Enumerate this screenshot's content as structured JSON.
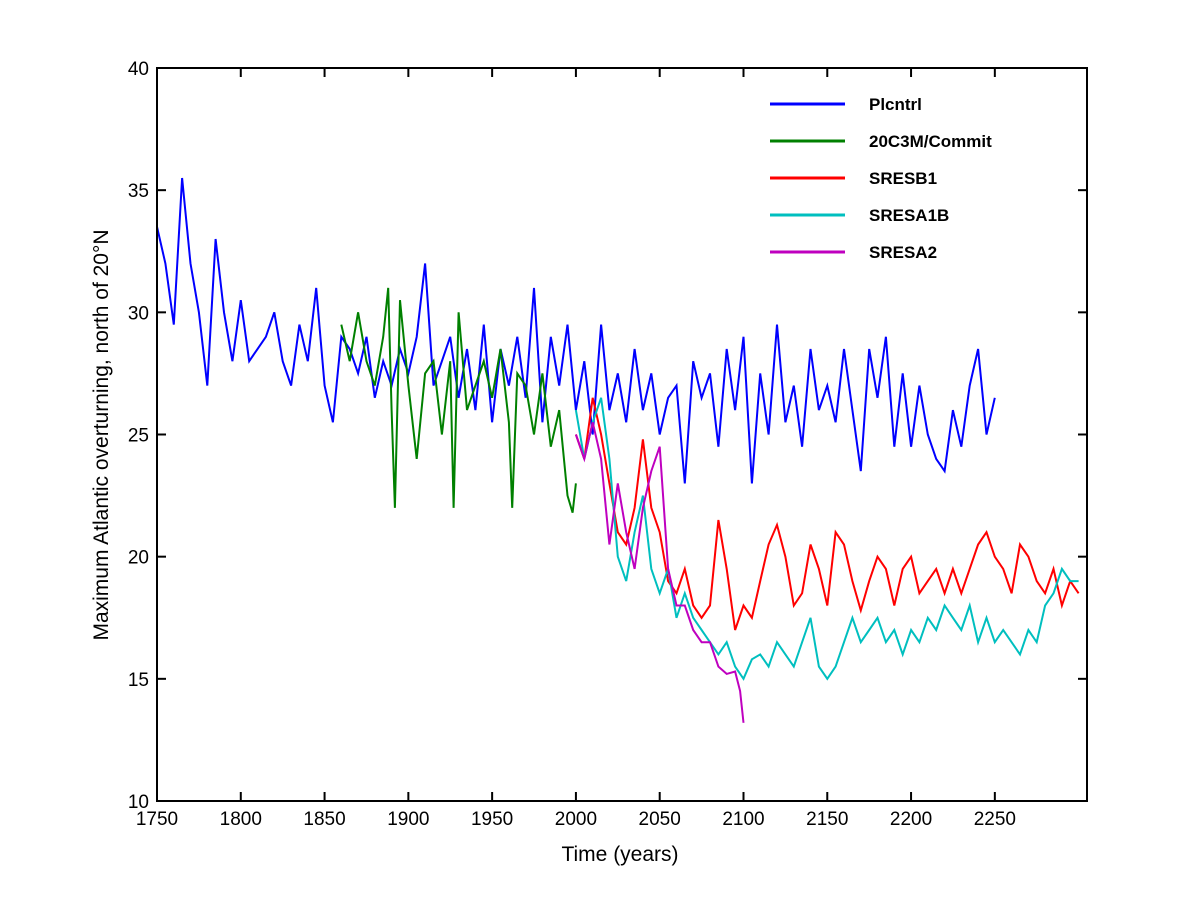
{
  "chart_data": {
    "type": "line",
    "title": "",
    "xlabel": "Time (years)",
    "ylabel": "Maximum Atlantic overturning, north of 20°N",
    "xlim": [
      1750,
      2305
    ],
    "ylim": [
      10,
      40
    ],
    "xticks": [
      1750,
      1800,
      1850,
      1900,
      1950,
      2000,
      2050,
      2100,
      2150,
      2200,
      2250
    ],
    "yticks": [
      10,
      15,
      20,
      25,
      30,
      35,
      40
    ],
    "grid": false,
    "legend_position": "top-right",
    "series": [
      {
        "name": "Plcntrl",
        "color": "#0000ff",
        "x": [
          1750,
          1755,
          1760,
          1765,
          1770,
          1775,
          1780,
          1785,
          1790,
          1795,
          1800,
          1805,
          1810,
          1815,
          1820,
          1825,
          1830,
          1835,
          1840,
          1845,
          1850,
          1855,
          1860,
          1865,
          1870,
          1875,
          1880,
          1885,
          1890,
          1895,
          1900,
          1905,
          1910,
          1915,
          1920,
          1925,
          1930,
          1935,
          1940,
          1945,
          1950,
          1955,
          1960,
          1965,
          1970,
          1975,
          1980,
          1985,
          1990,
          1995,
          2000,
          2005,
          2010,
          2015,
          2020,
          2025,
          2030,
          2035,
          2040,
          2045,
          2050,
          2055,
          2060,
          2065,
          2070,
          2075,
          2080,
          2085,
          2090,
          2095,
          2100,
          2105,
          2110,
          2115,
          2120,
          2125,
          2130,
          2135,
          2140,
          2145,
          2150,
          2155,
          2160,
          2165,
          2170,
          2175,
          2180,
          2185,
          2190,
          2195,
          2200,
          2205,
          2210,
          2215,
          2220,
          2225,
          2230,
          2235,
          2240,
          2245,
          2250
        ],
        "y": [
          33.5,
          32,
          29.5,
          35.5,
          32,
          30,
          27,
          33,
          30,
          28,
          30.5,
          28,
          28.5,
          29,
          30,
          28,
          27,
          29.5,
          28,
          31,
          27,
          25.5,
          29,
          28.5,
          27.5,
          29,
          26.5,
          28,
          27,
          28.5,
          27.5,
          29,
          32,
          27,
          28,
          29,
          26.5,
          28.5,
          26,
          29.5,
          25.5,
          28.5,
          27,
          29,
          26.5,
          31,
          25.5,
          29,
          27,
          29.5,
          26,
          28,
          25,
          29.5,
          26,
          27.5,
          25.5,
          28.5,
          26,
          27.5,
          25,
          26.5,
          27,
          23,
          28,
          26.5,
          27.5,
          24.5,
          28.5,
          26,
          29,
          23,
          27.5,
          25,
          29.5,
          25.5,
          27,
          24.5,
          28.5,
          26,
          27,
          25.5,
          28.5,
          26,
          23.5,
          28.5,
          26.5,
          29,
          24.5,
          27.5,
          24.5,
          27,
          25,
          24,
          23.5,
          26,
          24.5,
          27,
          28.5,
          25,
          26.5
        ]
      },
      {
        "name": "20C3M/Commit",
        "color": "#008000",
        "x": [
          1860,
          1865,
          1870,
          1875,
          1880,
          1885,
          1888,
          1890,
          1892,
          1895,
          1900,
          1905,
          1910,
          1915,
          1920,
          1925,
          1927,
          1930,
          1935,
          1940,
          1945,
          1950,
          1955,
          1960,
          1962,
          1965,
          1970,
          1975,
          1980,
          1985,
          1990,
          1995,
          1998,
          2000
        ],
        "y": [
          29.5,
          28,
          30,
          28,
          27,
          29,
          31,
          26,
          22,
          30.5,
          27,
          24,
          27.5,
          28,
          25,
          28,
          22,
          30,
          26,
          27,
          28,
          26.5,
          28.5,
          25.5,
          22,
          27.5,
          27,
          25,
          27.5,
          24.5,
          26,
          22.5,
          21.8,
          23
        ]
      },
      {
        "name": "SRESB1",
        "color": "#ff0000",
        "x": [
          2000,
          2005,
          2010,
          2015,
          2020,
          2025,
          2030,
          2035,
          2040,
          2045,
          2050,
          2055,
          2060,
          2065,
          2070,
          2075,
          2080,
          2085,
          2090,
          2095,
          2100,
          2105,
          2110,
          2115,
          2120,
          2125,
          2130,
          2135,
          2140,
          2145,
          2150,
          2155,
          2160,
          2165,
          2170,
          2175,
          2180,
          2185,
          2190,
          2195,
          2200,
          2205,
          2210,
          2215,
          2220,
          2225,
          2230,
          2235,
          2240,
          2245,
          2250,
          2255,
          2260,
          2265,
          2270,
          2275,
          2280,
          2285,
          2290,
          2295,
          2300
        ],
        "y": [
          25,
          24,
          26.5,
          25,
          23,
          21,
          20.5,
          22,
          24.8,
          22,
          21,
          19,
          18.5,
          19.5,
          18,
          17.5,
          18,
          21.5,
          19.5,
          17,
          18,
          17.5,
          19,
          20.5,
          21.3,
          20,
          18,
          18.5,
          20.5,
          19.5,
          18,
          21,
          20.5,
          19,
          17.8,
          19,
          20,
          19.5,
          18,
          19.5,
          20,
          18.5,
          19,
          19.5,
          18.5,
          19.5,
          18.5,
          19.5,
          20.5,
          21,
          20,
          19.5,
          18.5,
          20.5,
          20,
          19,
          18.5,
          19.5,
          18,
          19,
          18.5
        ]
      },
      {
        "name": "SRESA1B",
        "color": "#00bfbf",
        "x": [
          2000,
          2005,
          2010,
          2015,
          2020,
          2025,
          2030,
          2035,
          2040,
          2045,
          2050,
          2055,
          2060,
          2065,
          2070,
          2075,
          2080,
          2085,
          2090,
          2095,
          2100,
          2105,
          2110,
          2115,
          2120,
          2125,
          2130,
          2135,
          2140,
          2145,
          2150,
          2155,
          2160,
          2165,
          2170,
          2175,
          2180,
          2185,
          2190,
          2195,
          2200,
          2205,
          2210,
          2215,
          2220,
          2225,
          2230,
          2235,
          2240,
          2245,
          2250,
          2255,
          2260,
          2265,
          2270,
          2275,
          2280,
          2285,
          2290,
          2295,
          2300
        ],
        "y": [
          26,
          24,
          25.5,
          26.5,
          24,
          20,
          19,
          21,
          22.5,
          19.5,
          18.5,
          19.5,
          17.5,
          18.5,
          17.5,
          17,
          16.5,
          16,
          16.5,
          15.5,
          15,
          15.8,
          16,
          15.5,
          16.5,
          16,
          15.5,
          16.5,
          17.5,
          15.5,
          15,
          15.5,
          16.5,
          17.5,
          16.5,
          17,
          17.5,
          16.5,
          17,
          16,
          17,
          16.5,
          17.5,
          17,
          18,
          17.5,
          17,
          18,
          16.5,
          17.5,
          16.5,
          17,
          16.5,
          16,
          17,
          16.5,
          18,
          18.5,
          19.5,
          19,
          19
        ]
      },
      {
        "name": "SRESA2",
        "color": "#bf00bf",
        "x": [
          2000,
          2005,
          2010,
          2015,
          2020,
          2025,
          2030,
          2035,
          2040,
          2045,
          2050,
          2055,
          2060,
          2065,
          2070,
          2075,
          2080,
          2085,
          2090,
          2095,
          2098,
          2100
        ],
        "y": [
          25,
          24,
          25.5,
          24,
          20.5,
          23,
          21,
          19.5,
          22,
          23.5,
          24.5,
          19.5,
          18,
          18,
          17,
          16.5,
          16.5,
          15.5,
          15.2,
          15.3,
          14.5,
          13.2
        ]
      }
    ]
  }
}
